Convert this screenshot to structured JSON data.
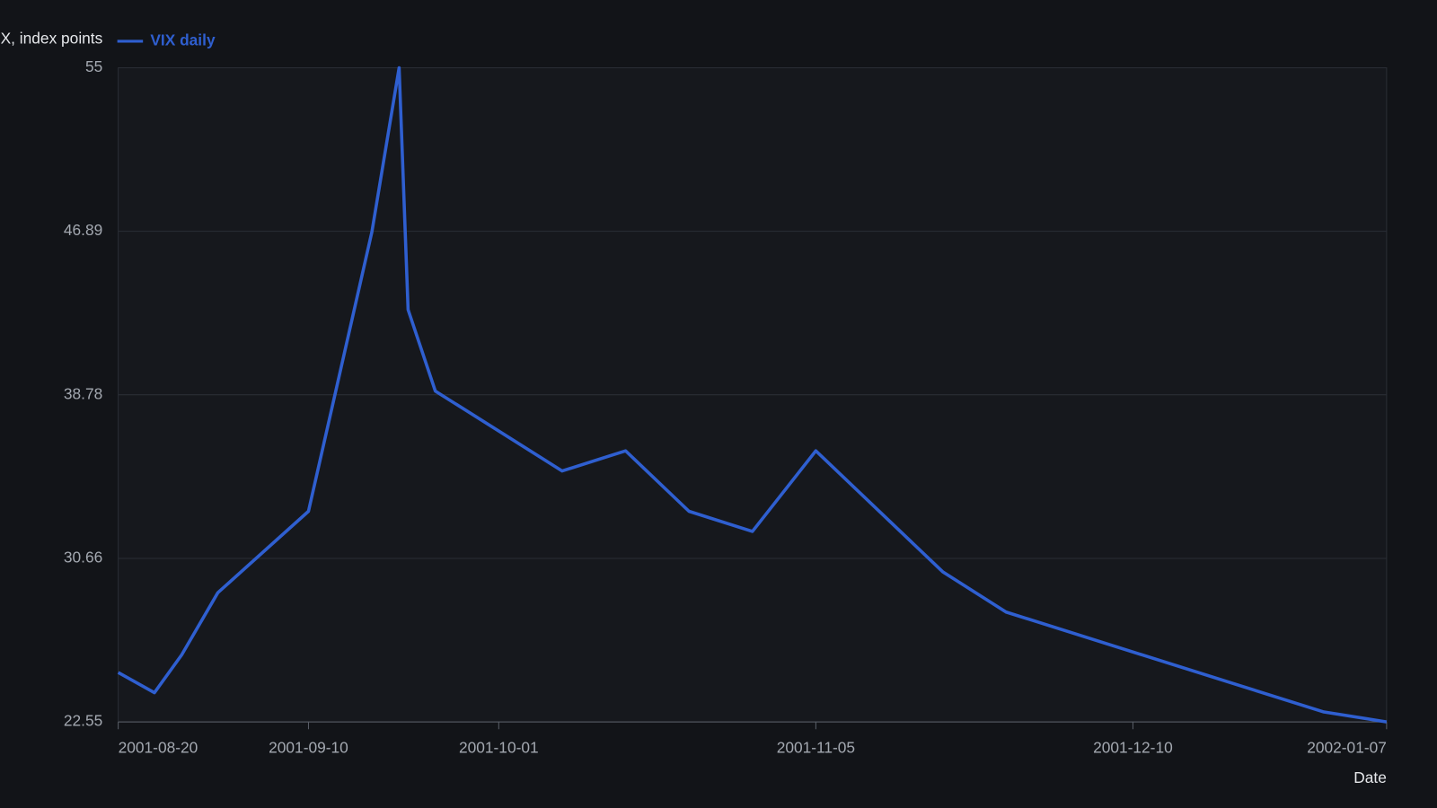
{
  "chart_data": {
    "type": "line",
    "title": "VIX, index points",
    "x_label": "Date",
    "x": [
      "2001-08-20",
      "2001-08-24",
      "2001-08-27",
      "2001-08-31",
      "2001-09-10",
      "2001-09-17",
      "2001-09-20",
      "2001-09-21",
      "2001-09-24",
      "2001-10-08",
      "2001-10-15",
      "2001-10-22",
      "2001-10-29",
      "2001-11-05",
      "2001-11-19",
      "2001-11-26",
      "2001-12-31",
      "2002-01-07"
    ],
    "series": [
      {
        "name": "VIX daily",
        "color": "#2f5fd0",
        "values": [
          25.0,
          24.0,
          25.87,
          28.96,
          33.0,
          46.86,
          55.0,
          43.0,
          38.96,
          35.0,
          36.0,
          33.0,
          32.0,
          36.0,
          30.0,
          28.0,
          23.05,
          22.55
        ]
      }
    ],
    "xlim": [
      "2001-08-20",
      "2002-01-07"
    ],
    "xticks": [
      "2001-08-20",
      "2001-09-10",
      "2001-10-01",
      "2001-11-05",
      "2001-12-10",
      "2002-01-07"
    ],
    "ylim": [
      22.55,
      55
    ],
    "yticks": [
      22.55,
      30.66,
      38.78,
      46.89,
      55
    ],
    "grid": true
  }
}
